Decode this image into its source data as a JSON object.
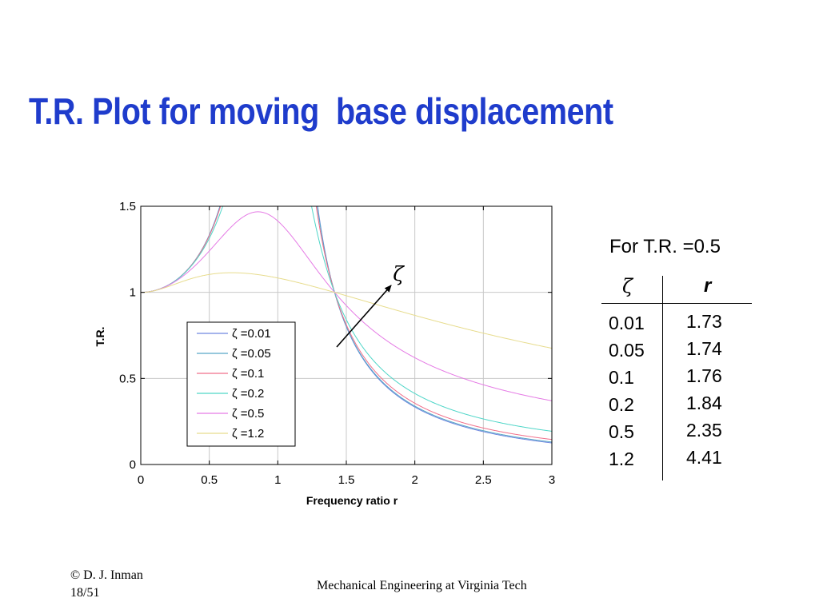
{
  "slide": {
    "title": "T.R. Plot for moving  base displacement",
    "footer_copyright": "© D. J. Inman",
    "footer_page": "18/51",
    "footer_center": "Mechanical Engineering at Virginia Tech"
  },
  "table": {
    "title": "For T.R. =0.5",
    "header_zeta": "ζ",
    "header_r": "r",
    "zeta": [
      "0.01",
      "0.05",
      "0.1",
      "0.2",
      "0.5",
      "1.2"
    ],
    "r": [
      "1.73",
      "1.74",
      "1.76",
      "1.84",
      "2.35",
      "4.41"
    ]
  },
  "chart_data": {
    "type": "line",
    "title": "",
    "xlabel": "Frequency ratio r",
    "ylabel": "T.R.",
    "xlim": [
      0,
      3
    ],
    "ylim": [
      0,
      1.5
    ],
    "x_ticks": [
      "0",
      "0.5",
      "1",
      "1.5",
      "2",
      "2.5",
      "3"
    ],
    "y_ticks": [
      "0",
      "0.5",
      "1",
      "1.5"
    ],
    "grid": true,
    "legend_position": "lower-left",
    "annotation_symbol": "ζ",
    "colors": [
      "#6f86e0",
      "#58a6c6",
      "#f06f8a",
      "#4fd6c8",
      "#e57be5",
      "#e7dc8d"
    ],
    "series": [
      {
        "name": "ζ =0.01",
        "zeta": 0.01
      },
      {
        "name": "ζ =0.05",
        "zeta": 0.05
      },
      {
        "name": "ζ =0.1",
        "zeta": 0.1
      },
      {
        "name": "ζ =0.2",
        "zeta": 0.2
      },
      {
        "name": "ζ =0.5",
        "zeta": 0.5
      },
      {
        "name": "ζ =1.2",
        "zeta": 1.2
      }
    ]
  }
}
